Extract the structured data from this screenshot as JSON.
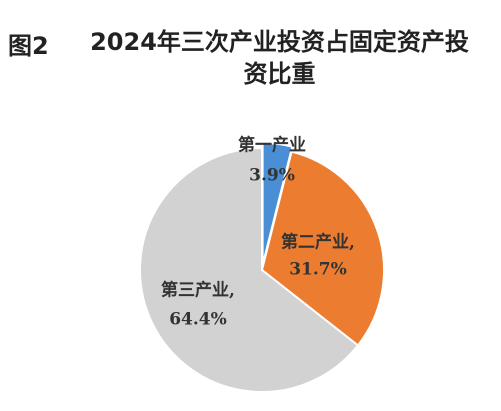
{
  "chart_data": {
    "type": "pie",
    "figure_label": "图2",
    "title": "2024年三次产业投资占固定资产投资比重",
    "categories": [
      "第一产业",
      "第二产业,",
      "第三产业,"
    ],
    "values": [
      3.9,
      31.7,
      64.4
    ],
    "value_labels": [
      "3.9%",
      "31.7%",
      "64.4%"
    ],
    "colors": [
      "#4a8fd6",
      "#ec7c30",
      "#d2d2d2"
    ]
  }
}
